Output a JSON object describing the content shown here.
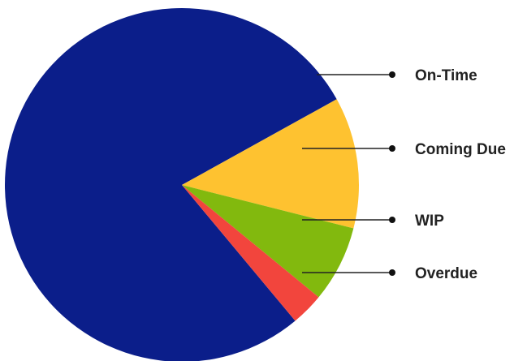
{
  "chart_data": {
    "type": "pie",
    "title": "",
    "slices": [
      {
        "label": "On-Time",
        "value": 78,
        "color": "#0b1e8a"
      },
      {
        "label": "Coming Due",
        "value": 12,
        "color": "#fec230"
      },
      {
        "label": "WIP",
        "value": 7,
        "color": "#82b90e"
      },
      {
        "label": "Overdue",
        "value": 3,
        "color": "#f2453d"
      }
    ],
    "legend": "right",
    "label_style": "leader-lines"
  }
}
